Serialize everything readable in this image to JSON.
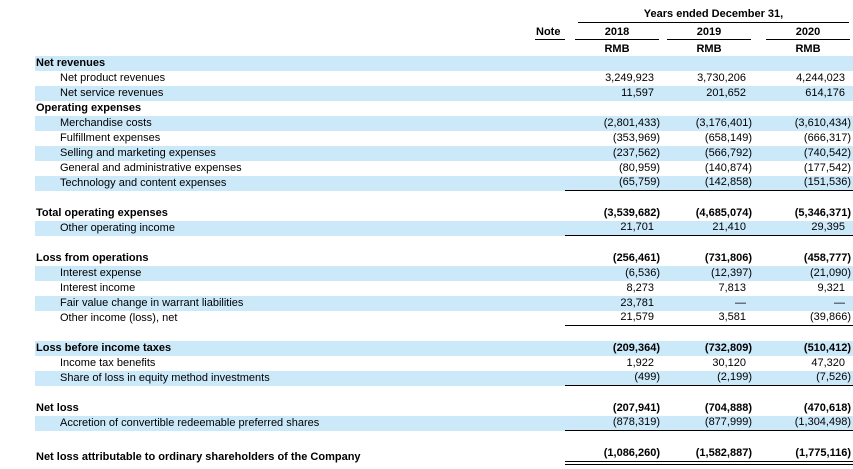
{
  "colors": {
    "stripe": "#cce9fa",
    "text": "#000000",
    "rule": "#000000"
  },
  "header": {
    "years_ended_label": "Years ended December 31,",
    "note_label": "Note",
    "years": [
      "2018",
      "2019",
      "2020"
    ],
    "currency": [
      "RMB",
      "RMB",
      "RMB"
    ]
  },
  "rows": [
    {
      "label": "Net revenues",
      "bold": true,
      "shaded": true,
      "indent": false,
      "rule": "none",
      "values": [
        "",
        "",
        ""
      ]
    },
    {
      "label": "Net product revenues",
      "bold": false,
      "shaded": false,
      "indent": true,
      "rule": "none",
      "values": [
        "3,249,923",
        "3,730,206",
        "4,244,023"
      ]
    },
    {
      "label": "Net service revenues",
      "bold": false,
      "shaded": true,
      "indent": true,
      "rule": "none",
      "values": [
        "11,597",
        "201,652",
        "614,176"
      ]
    },
    {
      "label": "Operating expenses",
      "bold": true,
      "shaded": false,
      "indent": false,
      "rule": "none",
      "values": [
        "",
        "",
        ""
      ]
    },
    {
      "label": "Merchandise costs",
      "bold": false,
      "shaded": true,
      "indent": true,
      "rule": "none",
      "values": [
        "(2,801,433)",
        "(3,176,401)",
        "(3,610,434)"
      ]
    },
    {
      "label": "Fulfillment expenses",
      "bold": false,
      "shaded": false,
      "indent": true,
      "rule": "none",
      "values": [
        "(353,969)",
        "(658,149)",
        "(666,317)"
      ]
    },
    {
      "label": "Selling and marketing expenses",
      "bold": false,
      "shaded": true,
      "indent": true,
      "rule": "none",
      "values": [
        "(237,562)",
        "(566,792)",
        "(740,542)"
      ]
    },
    {
      "label": "General and administrative expenses",
      "bold": false,
      "shaded": false,
      "indent": true,
      "rule": "none",
      "values": [
        "(80,959)",
        "(140,874)",
        "(177,542)"
      ]
    },
    {
      "label": "Technology and content expenses",
      "bold": false,
      "shaded": true,
      "indent": true,
      "rule": "single",
      "values": [
        "(65,759)",
        "(142,858)",
        "(151,536)"
      ]
    },
    {
      "type": "spacer"
    },
    {
      "label": "Total operating expenses",
      "bold": true,
      "shaded": false,
      "indent": false,
      "rule": "none",
      "values": [
        "(3,539,682)",
        "(4,685,074)",
        "(5,346,371)"
      ]
    },
    {
      "label": "Other operating income",
      "bold": false,
      "shaded": true,
      "indent": true,
      "rule": "single",
      "values": [
        "21,701",
        "21,410",
        "29,395"
      ]
    },
    {
      "type": "spacer"
    },
    {
      "label": "Loss from operations",
      "bold": true,
      "shaded": false,
      "indent": false,
      "rule": "none",
      "values": [
        "(256,461)",
        "(731,806)",
        "(458,777)"
      ]
    },
    {
      "label": "Interest expense",
      "bold": false,
      "shaded": true,
      "indent": true,
      "rule": "none",
      "values": [
        "(6,536)",
        "(12,397)",
        "(21,090)"
      ]
    },
    {
      "label": "Interest income",
      "bold": false,
      "shaded": false,
      "indent": true,
      "rule": "none",
      "values": [
        "8,273",
        "7,813",
        "9,321"
      ]
    },
    {
      "label": "Fair value change in warrant liabilities",
      "bold": false,
      "shaded": true,
      "indent": true,
      "rule": "none",
      "values": [
        "23,781",
        "—",
        "—"
      ]
    },
    {
      "label": "Other income (loss), net",
      "bold": false,
      "shaded": false,
      "indent": true,
      "rule": "single",
      "values": [
        "21,579",
        "3,581",
        "(39,866)"
      ]
    },
    {
      "type": "spacer"
    },
    {
      "label": "Loss before income taxes",
      "bold": true,
      "shaded": true,
      "indent": false,
      "rule": "none",
      "values": [
        "(209,364)",
        "(732,809)",
        "(510,412)"
      ]
    },
    {
      "label": "Income tax benefits",
      "bold": false,
      "shaded": false,
      "indent": true,
      "rule": "none",
      "values": [
        "1,922",
        "30,120",
        "47,320"
      ]
    },
    {
      "label": "Share of loss in equity method investments",
      "bold": false,
      "shaded": true,
      "indent": true,
      "rule": "single",
      "values": [
        "(499)",
        "(2,199)",
        "(7,526)"
      ]
    },
    {
      "type": "spacer"
    },
    {
      "label": "Net loss",
      "bold": true,
      "shaded": false,
      "indent": false,
      "rule": "none",
      "values": [
        "(207,941)",
        "(704,888)",
        "(470,618)"
      ]
    },
    {
      "label": "Accretion of convertible redeemable preferred shares",
      "bold": false,
      "shaded": true,
      "indent": true,
      "rule": "single",
      "values": [
        "(878,319)",
        "(877,999)",
        "(1,304,498)"
      ]
    },
    {
      "type": "spacer"
    },
    {
      "label": "Net loss attributable to ordinary shareholders of the Company",
      "bold": true,
      "shaded": false,
      "indent": false,
      "rule": "double",
      "values": [
        "(1,086,260)",
        "(1,582,887)",
        "(1,775,116)"
      ]
    }
  ]
}
